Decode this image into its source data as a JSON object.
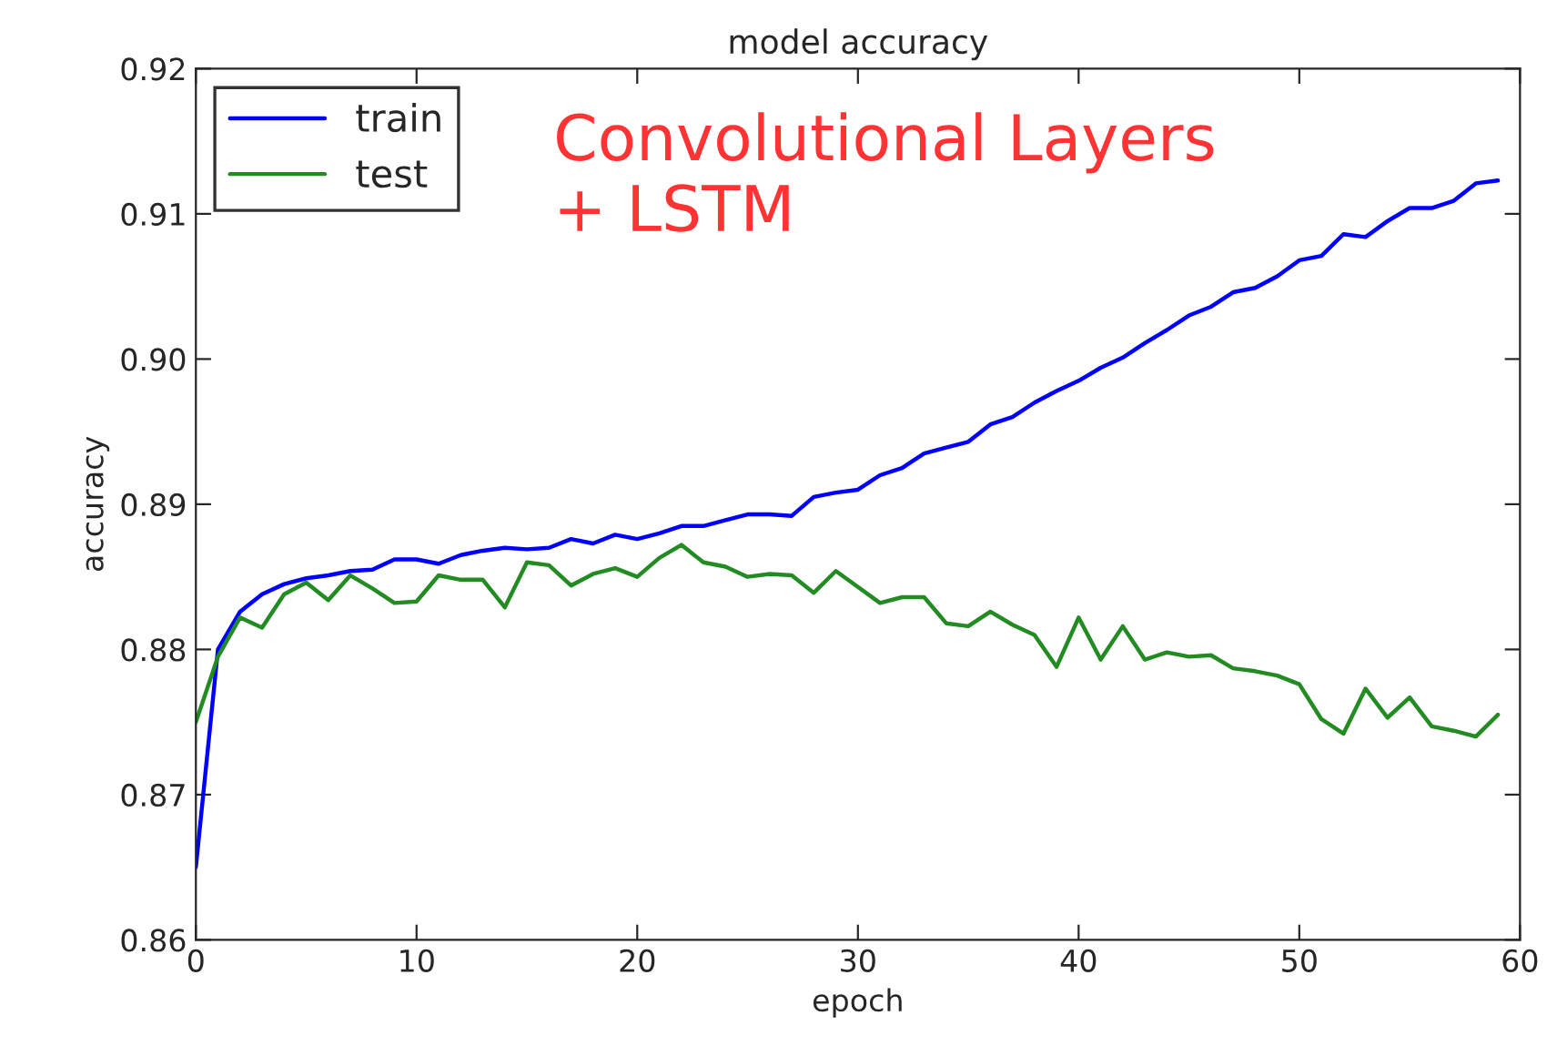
{
  "chart_data": {
    "type": "line",
    "title": "model accuracy",
    "xlabel": "epoch",
    "ylabel": "accuracy",
    "x": [
      0,
      1,
      2,
      3,
      4,
      5,
      6,
      7,
      8,
      9,
      10,
      11,
      12,
      13,
      14,
      15,
      16,
      17,
      18,
      19,
      20,
      21,
      22,
      23,
      24,
      25,
      26,
      27,
      28,
      29,
      30,
      31,
      32,
      33,
      34,
      35,
      36,
      37,
      38,
      39,
      40,
      41,
      42,
      43,
      44,
      45,
      46,
      47,
      48,
      49,
      50,
      51,
      52,
      53,
      54,
      55,
      56,
      57,
      58,
      59
    ],
    "series": [
      {
        "name": "train",
        "color": "#0000ff",
        "values": [
          0.865,
          0.88,
          0.8826,
          0.8838,
          0.8845,
          0.8849,
          0.8851,
          0.8854,
          0.8855,
          0.8862,
          0.8862,
          0.8859,
          0.8865,
          0.8868,
          0.887,
          0.8869,
          0.887,
          0.8876,
          0.8873,
          0.8879,
          0.8876,
          0.888,
          0.8885,
          0.8885,
          0.8889,
          0.8893,
          0.8893,
          0.8892,
          0.8905,
          0.8908,
          0.891,
          0.892,
          0.8925,
          0.8935,
          0.8939,
          0.8943,
          0.8955,
          0.896,
          0.897,
          0.8978,
          0.8985,
          0.8994,
          0.9001,
          0.9011,
          0.902,
          0.903,
          0.9036,
          0.9046,
          0.9049,
          0.9057,
          0.9068,
          0.9071,
          0.9086,
          0.9084,
          0.9095,
          0.9104,
          0.9104,
          0.9109,
          0.9121,
          0.9123
        ]
      },
      {
        "name": "test",
        "color": "#228b22",
        "values": [
          0.875,
          0.8795,
          0.8822,
          0.8815,
          0.8838,
          0.8846,
          0.8834,
          0.8851,
          0.8842,
          0.8832,
          0.8833,
          0.8851,
          0.8848,
          0.8848,
          0.8829,
          0.886,
          0.8858,
          0.8844,
          0.8852,
          0.8856,
          0.885,
          0.8863,
          0.8872,
          0.886,
          0.8857,
          0.885,
          0.8852,
          0.8851,
          0.8839,
          0.8854,
          0.8843,
          0.8832,
          0.8836,
          0.8836,
          0.8818,
          0.8816,
          0.8826,
          0.8817,
          0.881,
          0.8788,
          0.8822,
          0.8793,
          0.8816,
          0.8793,
          0.8798,
          0.8795,
          0.8796,
          0.8787,
          0.8785,
          0.8782,
          0.8776,
          0.8752,
          0.8742,
          0.8773,
          0.8753,
          0.8767,
          0.8747,
          0.8744,
          0.874,
          0.8755
        ]
      }
    ],
    "xlim": [
      0,
      60
    ],
    "xticks": [
      0,
      10,
      20,
      30,
      40,
      50,
      60
    ],
    "ylim": [
      0.86,
      0.92
    ],
    "yticks": [
      0.86,
      0.87,
      0.88,
      0.89,
      {
        "value": 0.9,
        "label": "0.90"
      },
      0.91,
      0.92
    ],
    "legend": "top left",
    "grid": false,
    "marker": "none",
    "line_style": "solid",
    "annotations": [
      "Convolutional Layers\n+ LSTM"
    ]
  }
}
